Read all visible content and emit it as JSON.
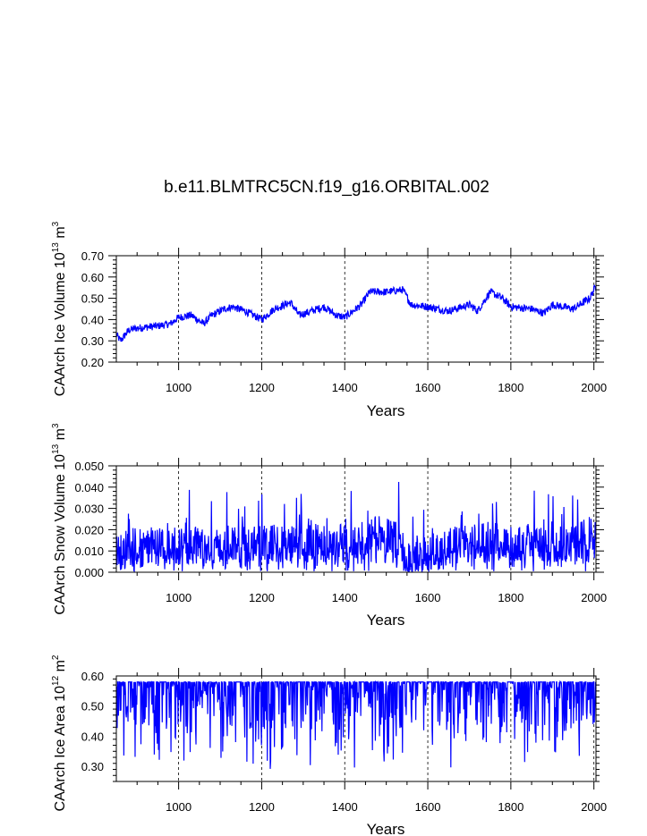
{
  "title": "b.e11.BLMTRC5CN.f19_g16.ORBITAL.002",
  "colors": {
    "series": "#0000ff",
    "axis": "#000000",
    "grid": "#000000"
  },
  "chart_data": [
    {
      "type": "line",
      "name": "ice-volume",
      "xlabel": "Years",
      "ylabel": {
        "pre": "CAArch Ice Volume 10",
        "exp": "13",
        "mid": " m",
        "unit_exp": "3"
      },
      "xlim": [
        850,
        2005
      ],
      "ylim": [
        0.2,
        0.7
      ],
      "xticks": [
        1000,
        1200,
        1400,
        1600,
        1800,
        2000
      ],
      "xtick_labels": [
        "1000",
        "1200",
        "1400",
        "1600",
        "1800",
        "2000"
      ],
      "yticks": [
        0.2,
        0.3,
        0.4,
        0.5,
        0.6,
        0.7
      ],
      "ytick_labels": [
        "0.20",
        "0.30",
        "0.40",
        "0.50",
        "0.60",
        "0.70"
      ],
      "noise": 0.018,
      "spikes": 0.0,
      "series": [
        {
          "name": "Ice Volume",
          "baseline_x": [
            850,
            860,
            880,
            900,
            950,
            980,
            1000,
            1030,
            1060,
            1080,
            1110,
            1130,
            1160,
            1200,
            1230,
            1270,
            1290,
            1320,
            1350,
            1380,
            1400,
            1420,
            1440,
            1460,
            1500,
            1540,
            1560,
            1600,
            1650,
            1700,
            1720,
            1750,
            1780,
            1800,
            1850,
            1880,
            1900,
            1950,
            1990,
            2005
          ],
          "baseline_y": [
            0.33,
            0.3,
            0.35,
            0.36,
            0.37,
            0.38,
            0.41,
            0.42,
            0.38,
            0.42,
            0.45,
            0.46,
            0.44,
            0.4,
            0.45,
            0.48,
            0.42,
            0.44,
            0.46,
            0.42,
            0.41,
            0.44,
            0.47,
            0.53,
            0.53,
            0.54,
            0.47,
            0.46,
            0.44,
            0.47,
            0.44,
            0.53,
            0.5,
            0.46,
            0.45,
            0.43,
            0.47,
            0.45,
            0.5,
            0.56
          ]
        }
      ]
    },
    {
      "type": "line",
      "name": "snow-volume",
      "xlabel": "Years",
      "ylabel": {
        "pre": "CAArch Snow Volume 10",
        "exp": "13",
        "mid": " m",
        "unit_exp": "3"
      },
      "xlim": [
        850,
        2005
      ],
      "ylim": [
        0.0,
        0.05
      ],
      "xticks": [
        1000,
        1200,
        1400,
        1600,
        1800,
        2000
      ],
      "xtick_labels": [
        "1000",
        "1200",
        "1400",
        "1600",
        "1800",
        "2000"
      ],
      "yticks": [
        0.0,
        0.01,
        0.02,
        0.03,
        0.04,
        0.05
      ],
      "ytick_labels": [
        "0.000",
        "0.010",
        "0.020",
        "0.030",
        "0.040",
        "0.050"
      ],
      "noise": 0.009,
      "spikes": 0.6,
      "series": [
        {
          "name": "Snow Volume",
          "baseline_x": [
            850,
            1100,
            1440,
            1470,
            1530,
            1550,
            1700,
            1950,
            2005
          ],
          "baseline_y": [
            0.012,
            0.013,
            0.014,
            0.02,
            0.014,
            0.005,
            0.015,
            0.013,
            0.02
          ]
        }
      ]
    },
    {
      "type": "line",
      "name": "ice-area",
      "xlabel": "Years",
      "ylabel": {
        "pre": "CAArch Ice Area 10",
        "exp": "12",
        "mid": " m",
        "unit_exp": "2"
      },
      "xlim": [
        850,
        2005
      ],
      "ylim": [
        0.25,
        0.6
      ],
      "xticks": [
        1000,
        1200,
        1400,
        1600,
        1800,
        2000
      ],
      "xtick_labels": [
        "1000",
        "1200",
        "1400",
        "1600",
        "1800",
        "2000"
      ],
      "yticks": [
        0.3,
        0.4,
        0.5,
        0.6
      ],
      "ytick_labels": [
        "0.30",
        "0.40",
        "0.50",
        "0.60"
      ],
      "ceiling": 0.58,
      "series": [
        {
          "name": "Ice Area",
          "baseline_x": [
            850,
            2005
          ],
          "baseline_y": [
            0.5,
            0.5
          ]
        }
      ]
    }
  ]
}
